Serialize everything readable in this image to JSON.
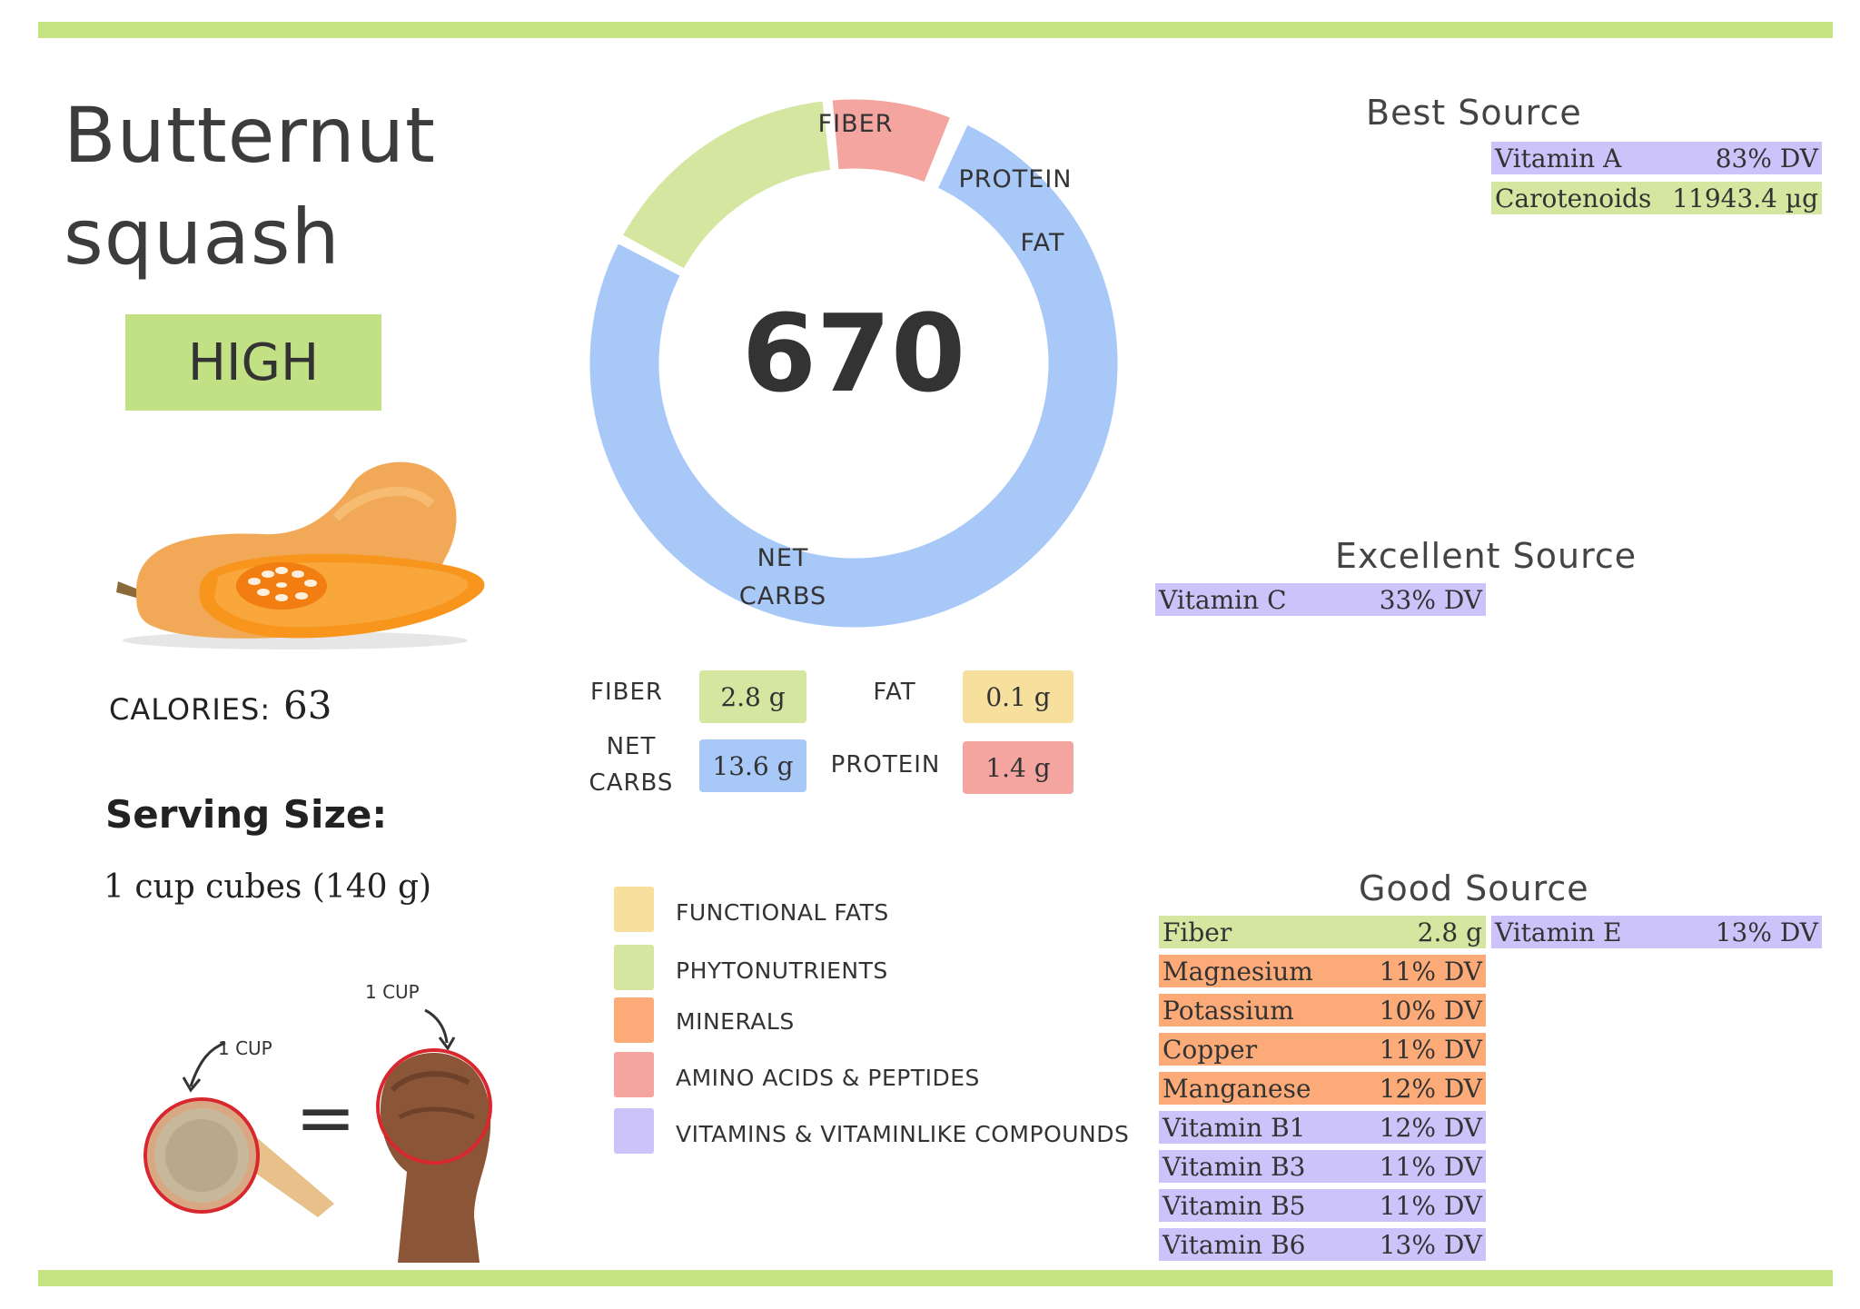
{
  "food": {
    "name_line1": "Butternut",
    "name_line2": "squash",
    "level": "HIGH"
  },
  "calories": {
    "label": "CALORIES:",
    "value": "63"
  },
  "serving": {
    "title": "Serving Size:",
    "value": "1 cup cubes (140 g)"
  },
  "measure": {
    "cup_label_left": "1 CUP",
    "cup_label_right": "1 CUP",
    "equals": "="
  },
  "donut": {
    "center_value": "670",
    "segments": [
      {
        "name": "FIBER",
        "value": 2.8,
        "color": "#d4e6a0"
      },
      {
        "name": "PROTEIN",
        "value": 1.4,
        "color": "#f4a5a0"
      },
      {
        "name": "FAT",
        "value": 0.1,
        "color": "#f7df9e"
      },
      {
        "name_line1": "NET",
        "name_line2": "CARBS",
        "value": 13.6,
        "color": "#a8c8f8"
      }
    ]
  },
  "macros": {
    "fiber": {
      "label": "FIBER",
      "value": "2.8 g",
      "color": "#d4e6a0"
    },
    "fat": {
      "label": "FAT",
      "value": "0.1 g",
      "color": "#f7df9e"
    },
    "net_carbs": {
      "label_line1": "NET",
      "label_line2": "CARBS",
      "value": "13.6 g",
      "color": "#a8c8f8"
    },
    "protein": {
      "label": "PROTEIN",
      "value": "1.4 g",
      "color": "#f4a5a0"
    }
  },
  "legend": [
    {
      "label": "FUNCTIONAL  FATS",
      "color": "#f7df9e"
    },
    {
      "label": "PHYTONUTRIENTS",
      "color": "#d4e6a0"
    },
    {
      "label": "MINERALS",
      "color": "#fcab78"
    },
    {
      "label": "AMINO ACIDS & PEPTIDES",
      "color": "#f4a5a0"
    },
    {
      "label": "VITAMINS & VITAMINLIKE COMPOUNDS",
      "color": "#cbc3f9"
    }
  ],
  "best_source": {
    "title": "Best Source",
    "items": [
      {
        "name": "Vitamin A",
        "value": "83% DV",
        "color": "#cbc3f9"
      },
      {
        "name": "Carotenoids",
        "value": "11943.4 µg",
        "color": "#d4e6a0"
      }
    ]
  },
  "excellent_source": {
    "title": "Excellent Source",
    "items": [
      {
        "name": "Vitamin C",
        "value": "33% DV",
        "color": "#cbc3f9"
      }
    ]
  },
  "good_source": {
    "title": "Good Source",
    "left": [
      {
        "name": "Fiber",
        "value": "2.8 g",
        "color": "#d4e6a0"
      },
      {
        "name": "Magnesium",
        "value": "11% DV",
        "color": "#fcab78"
      },
      {
        "name": "Potassium",
        "value": "10% DV",
        "color": "#fcab78"
      },
      {
        "name": "Copper",
        "value": "11% DV",
        "color": "#fcab78"
      },
      {
        "name": "Manganese",
        "value": "12% DV",
        "color": "#fcab78"
      },
      {
        "name": "Vitamin B1",
        "value": "12% DV",
        "color": "#cbc3f9"
      },
      {
        "name": "Vitamin B3",
        "value": "11% DV",
        "color": "#cbc3f9"
      },
      {
        "name": "Vitamin B5",
        "value": "11% DV",
        "color": "#cbc3f9"
      },
      {
        "name": "Vitamin B6",
        "value": "13% DV",
        "color": "#cbc3f9"
      }
    ],
    "right": [
      {
        "name": "Vitamin E",
        "value": "13% DV",
        "color": "#cbc3f9"
      }
    ]
  },
  "theme": {
    "accent_green": "#c6e383"
  }
}
